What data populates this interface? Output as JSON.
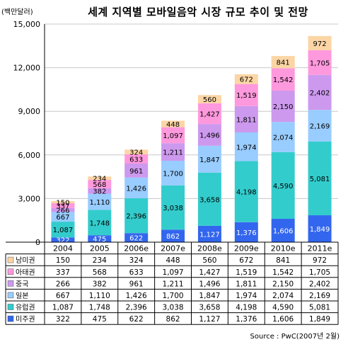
{
  "chart_data": {
    "type": "bar",
    "stacked": true,
    "title": "세계 지역별 모바일음악 시장 규모 추이 및 전망",
    "unit_label": "(백만달러)",
    "source": "Source : PwC(2007년 2월)",
    "categories": [
      "2004",
      "2005",
      "2006e",
      "2007e",
      "2008e",
      "2009e",
      "2010e",
      "2011e"
    ],
    "ylim": [
      0,
      15000
    ],
    "yticks": [
      "0",
      "3,000",
      "6,000",
      "9,000",
      "12,000",
      "15,000"
    ],
    "grid": true,
    "legend": "table-below",
    "series": [
      {
        "name": "미주권",
        "color": "#3366ee",
        "values": [
          322,
          475,
          622,
          862,
          1127,
          1376,
          1606,
          1849
        ],
        "labels": [
          "322",
          "475",
          "622",
          "862",
          "1,127",
          "1,376",
          "1,606",
          "1,849"
        ]
      },
      {
        "name": "유럽권",
        "color": "#33cccc",
        "values": [
          1087,
          1748,
          2396,
          3038,
          3658,
          4198,
          4590,
          5081
        ],
        "labels": [
          "1,087",
          "1,748",
          "2,396",
          "3,038",
          "3,658",
          "4,198",
          "4,590",
          "5,081"
        ]
      },
      {
        "name": "일본",
        "color": "#99ccff",
        "values": [
          667,
          1110,
          1426,
          1700,
          1847,
          1974,
          2074,
          2169
        ],
        "labels": [
          "667",
          "1,110",
          "1,426",
          "1,700",
          "1,847",
          "1,974",
          "2,074",
          "2,169"
        ]
      },
      {
        "name": "중국",
        "color": "#cc99ee",
        "values": [
          266,
          382,
          961,
          1211,
          1496,
          1811,
          2150,
          2402
        ],
        "labels": [
          "266",
          "382",
          "961",
          "1,211",
          "1,496",
          "1,811",
          "2,150",
          "2,402"
        ]
      },
      {
        "name": "아태권",
        "color": "#ff99dd",
        "values": [
          337,
          568,
          633,
          1097,
          1427,
          1519,
          1542,
          1705
        ],
        "labels": [
          "337",
          "568",
          "633",
          "1,097",
          "1,427",
          "1,519",
          "1,542",
          "1,705"
        ]
      },
      {
        "name": "남미권",
        "color": "#fcd5a5",
        "values": [
          150,
          234,
          324,
          448,
          560,
          672,
          841,
          972
        ],
        "labels": [
          "150",
          "234",
          "324",
          "448",
          "560",
          "672",
          "841",
          "972"
        ]
      }
    ]
  }
}
